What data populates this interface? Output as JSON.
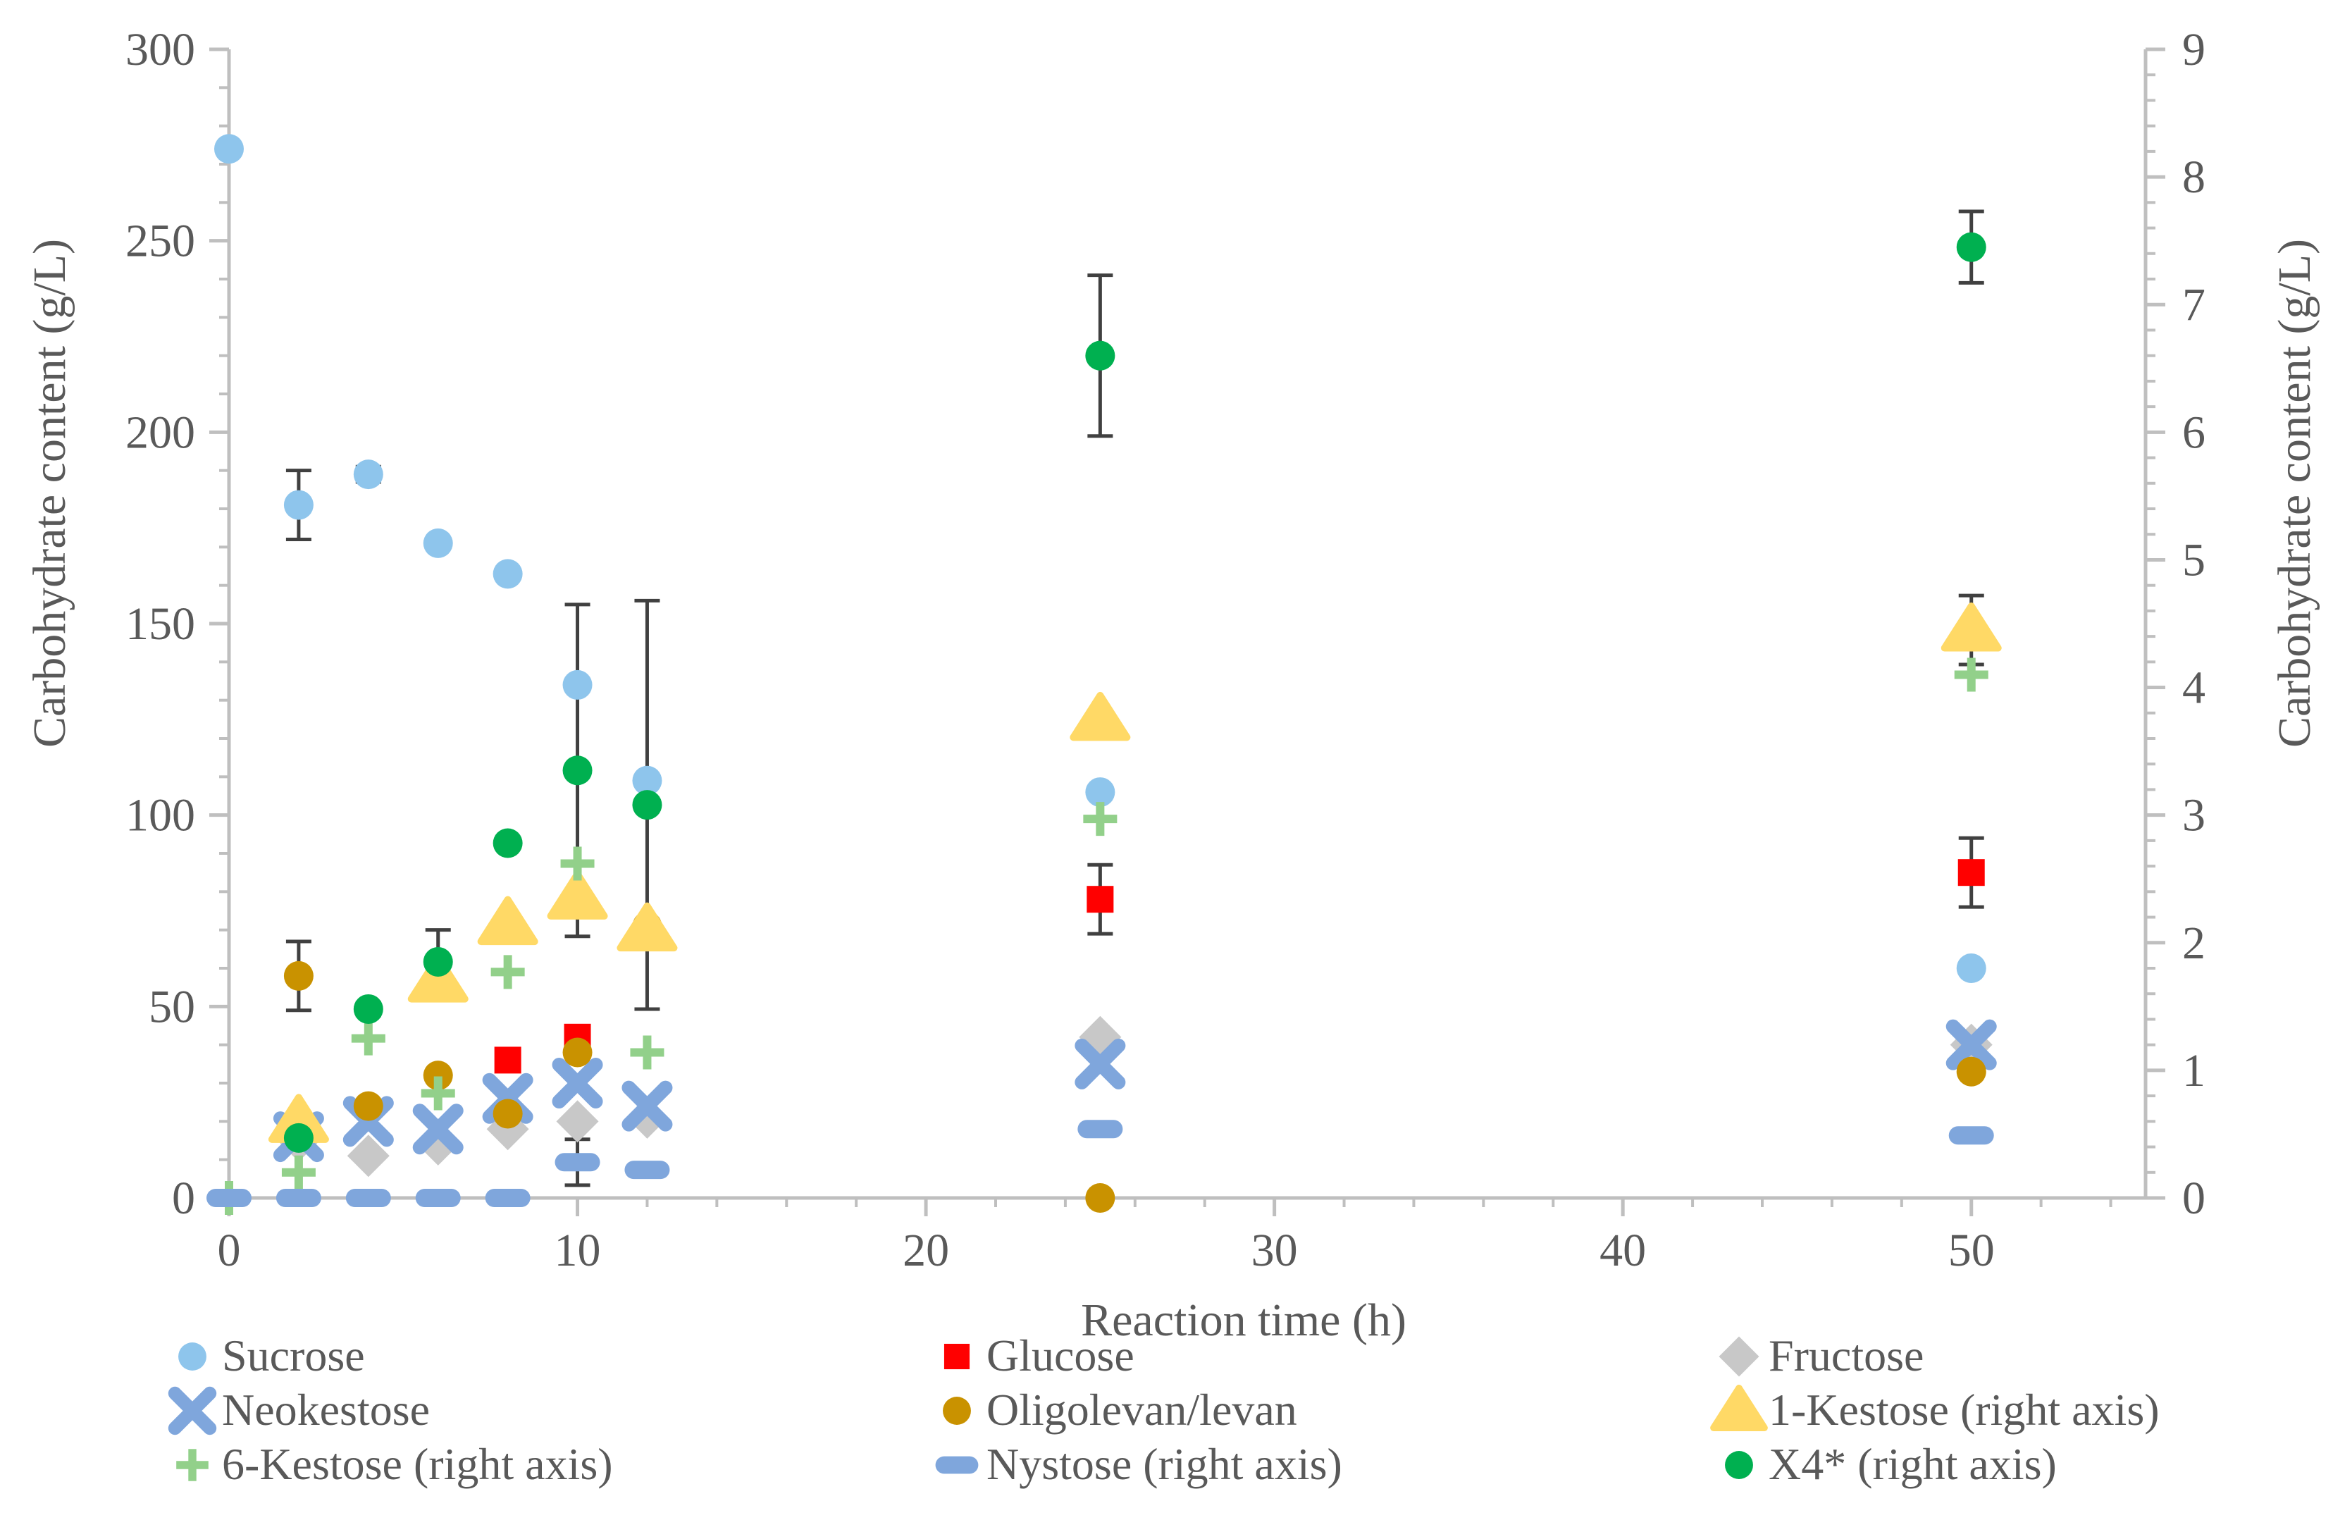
{
  "chart_data": {
    "type": "scatter",
    "xlabel": "Reaction time (h)",
    "ylabel": "Carbohydrate content (g/L)",
    "y2label": "Carbohydrate content (g/L)",
    "xlim": [
      0,
      55
    ],
    "ylim": [
      0,
      300
    ],
    "y2lim": [
      0,
      9
    ],
    "x_ticks": [
      0,
      10,
      20,
      30,
      40,
      50
    ],
    "y_ticks": [
      0,
      50,
      100,
      150,
      200,
      250,
      300
    ],
    "y2_ticks": [
      0,
      1,
      2,
      3,
      4,
      5,
      6,
      7,
      8,
      9
    ],
    "grid": false,
    "legend_position": "bottom",
    "series": [
      {
        "name": "Sucrose",
        "axis": "left",
        "marker": "circle",
        "color": "#8ec5ec",
        "x": [
          0,
          2,
          4,
          6,
          8,
          10,
          12,
          25,
          50
        ],
        "y": [
          274,
          181,
          189,
          171,
          163,
          134,
          109,
          106,
          60
        ],
        "err": [
          0,
          9,
          2,
          0,
          0,
          0,
          0,
          0,
          0
        ]
      },
      {
        "name": "Glucose",
        "axis": "left",
        "marker": "square",
        "color": "#ff0000",
        "x": [
          8,
          10,
          25,
          50
        ],
        "y": [
          36,
          42,
          78,
          85
        ],
        "err": [
          0,
          0,
          9,
          9
        ]
      },
      {
        "name": "Fructose",
        "axis": "left",
        "marker": "diamond",
        "color": "#c8c8c8",
        "x": [
          2,
          4,
          6,
          8,
          10,
          12,
          25,
          50
        ],
        "y": [
          15,
          11,
          14,
          18,
          20,
          21,
          42,
          40
        ],
        "err": [
          0,
          0,
          0,
          0,
          0,
          0,
          0,
          0
        ]
      },
      {
        "name": "Neokestose",
        "axis": "left",
        "marker": "x",
        "color": "#7fa6dc",
        "x": [
          2,
          4,
          6,
          8,
          10,
          12,
          25,
          50
        ],
        "y": [
          16,
          20,
          18,
          26,
          30,
          24,
          35,
          40
        ],
        "err": [
          0,
          0,
          0,
          0,
          0,
          0,
          0,
          0
        ]
      },
      {
        "name": "Oligolevan/levan",
        "axis": "left",
        "marker": "circle",
        "color": "#c99200",
        "x": [
          2,
          4,
          6,
          8,
          10,
          12,
          25,
          50
        ],
        "y": [
          58,
          24,
          32,
          22,
          38,
          71,
          0,
          33
        ],
        "err": [
          9,
          0,
          0,
          0,
          0,
          0,
          0,
          0
        ]
      },
      {
        "name": "1-Kestose (right axis)",
        "axis": "right",
        "marker": "triangle",
        "color": "#ffd966",
        "x": [
          2,
          6,
          8,
          10,
          12,
          25,
          50
        ],
        "y": [
          0.6,
          1.7,
          2.15,
          2.35,
          2.1,
          3.75,
          4.45
        ],
        "err": [
          0,
          0,
          0,
          0,
          0,
          0.05,
          0.27
        ]
      },
      {
        "name": "6-Kestose (right axis)",
        "axis": "right",
        "marker": "plus",
        "color": "#92d08a",
        "x": [
          0,
          2,
          4,
          6,
          8,
          10,
          12,
          25,
          50
        ],
        "y": [
          0,
          0.2,
          1.25,
          0.82,
          1.77,
          2.62,
          1.14,
          2.97,
          4.1
        ],
        "err": [
          0,
          0,
          0,
          0,
          0,
          0,
          0,
          0,
          0
        ]
      },
      {
        "name": "Nystose (right axis)",
        "axis": "right",
        "marker": "dash",
        "color": "#7fa6dc",
        "x": [
          0,
          2,
          4,
          6,
          8,
          10,
          12,
          25,
          50
        ],
        "y": [
          0,
          0,
          0,
          0,
          0,
          0.28,
          0.22,
          0.54,
          0.49
        ],
        "err": [
          0,
          0,
          0,
          0,
          0,
          0.18,
          0,
          0.05,
          0.05
        ]
      },
      {
        "name": "X4* (right axis)",
        "axis": "right",
        "marker": "circle",
        "color": "#00b050",
        "x": [
          2,
          4,
          6,
          8,
          10,
          12,
          25,
          50
        ],
        "y": [
          0.47,
          1.48,
          1.85,
          2.78,
          3.35,
          3.08,
          6.6,
          7.45
        ],
        "err": [
          0,
          0.05,
          0.25,
          0,
          1.3,
          1.6,
          0.63,
          0.28
        ]
      }
    ]
  }
}
